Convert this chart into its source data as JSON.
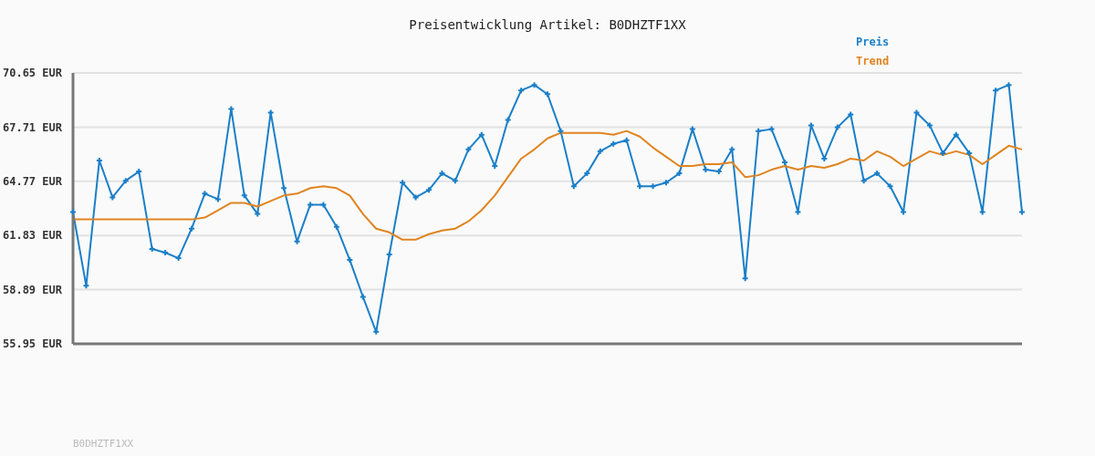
{
  "chart_data": {
    "type": "line",
    "title": "Preisentwicklung Artikel: B0DHZTF1XX",
    "annotations": [
      "B0DHZTF1XX"
    ],
    "categories": [
      null,
      null,
      null,
      null,
      null,
      null,
      null,
      null,
      null,
      null,
      null,
      null,
      null,
      null,
      null,
      null,
      null,
      null,
      null,
      null,
      null,
      null,
      null,
      null,
      null,
      null,
      null,
      null,
      null,
      null,
      null,
      null,
      null,
      null,
      null,
      null,
      null,
      null,
      null,
      null,
      null,
      null,
      null,
      null,
      null,
      null,
      null,
      null,
      null,
      null,
      null,
      null,
      null,
      null,
      null,
      null,
      null,
      null,
      null,
      null,
      null,
      null,
      null,
      null,
      null,
      null,
      null,
      null,
      null,
      null,
      null,
      null,
      null
    ],
    "series": [
      {
        "name": "Preis",
        "color": "#1a7fc8",
        "marker": "cross",
        "values": [
          63.1,
          59.1,
          65.9,
          63.9,
          64.8,
          65.3,
          61.1,
          60.9,
          60.6,
          62.2,
          64.1,
          63.8,
          68.7,
          64.0,
          63.0,
          68.5,
          64.4,
          61.5,
          63.5,
          63.5,
          62.3,
          60.5,
          58.5,
          56.6,
          60.8,
          64.7,
          63.9,
          64.3,
          65.2,
          64.8,
          66.5,
          67.3,
          65.6,
          68.1,
          69.7,
          70.0,
          69.5,
          67.5,
          64.5,
          65.2,
          66.4,
          66.8,
          67.0,
          64.5,
          64.5,
          64.7,
          65.2,
          67.6,
          65.4,
          65.3,
          66.5,
          59.5,
          67.5,
          67.6,
          65.8,
          63.1,
          67.8,
          66.0,
          67.7,
          68.4,
          64.8,
          65.2,
          64.5,
          63.1,
          68.5,
          67.8,
          66.3,
          67.3,
          66.3,
          63.1,
          69.7,
          70.0,
          63.1
        ]
      },
      {
        "name": "Trend",
        "color": "#e08420",
        "marker": "none",
        "values": [
          62.7,
          62.7,
          62.7,
          62.7,
          62.7,
          62.7,
          62.7,
          62.7,
          62.7,
          62.7,
          62.8,
          63.2,
          63.6,
          63.6,
          63.4,
          63.7,
          64.0,
          64.1,
          64.4,
          64.5,
          64.4,
          64.0,
          63.0,
          62.2,
          62.0,
          61.6,
          61.6,
          61.9,
          62.1,
          62.2,
          62.6,
          63.2,
          64.0,
          65.0,
          66.0,
          66.5,
          67.1,
          67.4,
          67.4,
          67.4,
          67.4,
          67.3,
          67.5,
          67.2,
          66.6,
          66.1,
          65.6,
          65.6,
          65.7,
          65.7,
          65.8,
          65.0,
          65.1,
          65.4,
          65.6,
          65.4,
          65.6,
          65.5,
          65.7,
          66.0,
          65.9,
          66.4,
          66.1,
          65.6,
          66.0,
          66.4,
          66.2,
          66.4,
          66.2,
          65.7,
          66.2,
          66.7,
          66.5
        ]
      }
    ],
    "ylim": [
      55.95,
      70.65
    ],
    "yticks": [
      {
        "value": 55.95,
        "label": "55.95 EUR"
      },
      {
        "value": 58.89,
        "label": "58.89 EUR"
      },
      {
        "value": 61.83,
        "label": "61.83 EUR"
      },
      {
        "value": 64.77,
        "label": "64.77 EUR"
      },
      {
        "value": 67.71,
        "label": "67.71 EUR"
      },
      {
        "value": 70.65,
        "label": "70.65 EUR"
      }
    ],
    "grid": "y",
    "legend": "top right",
    "tick_labels": "y"
  }
}
